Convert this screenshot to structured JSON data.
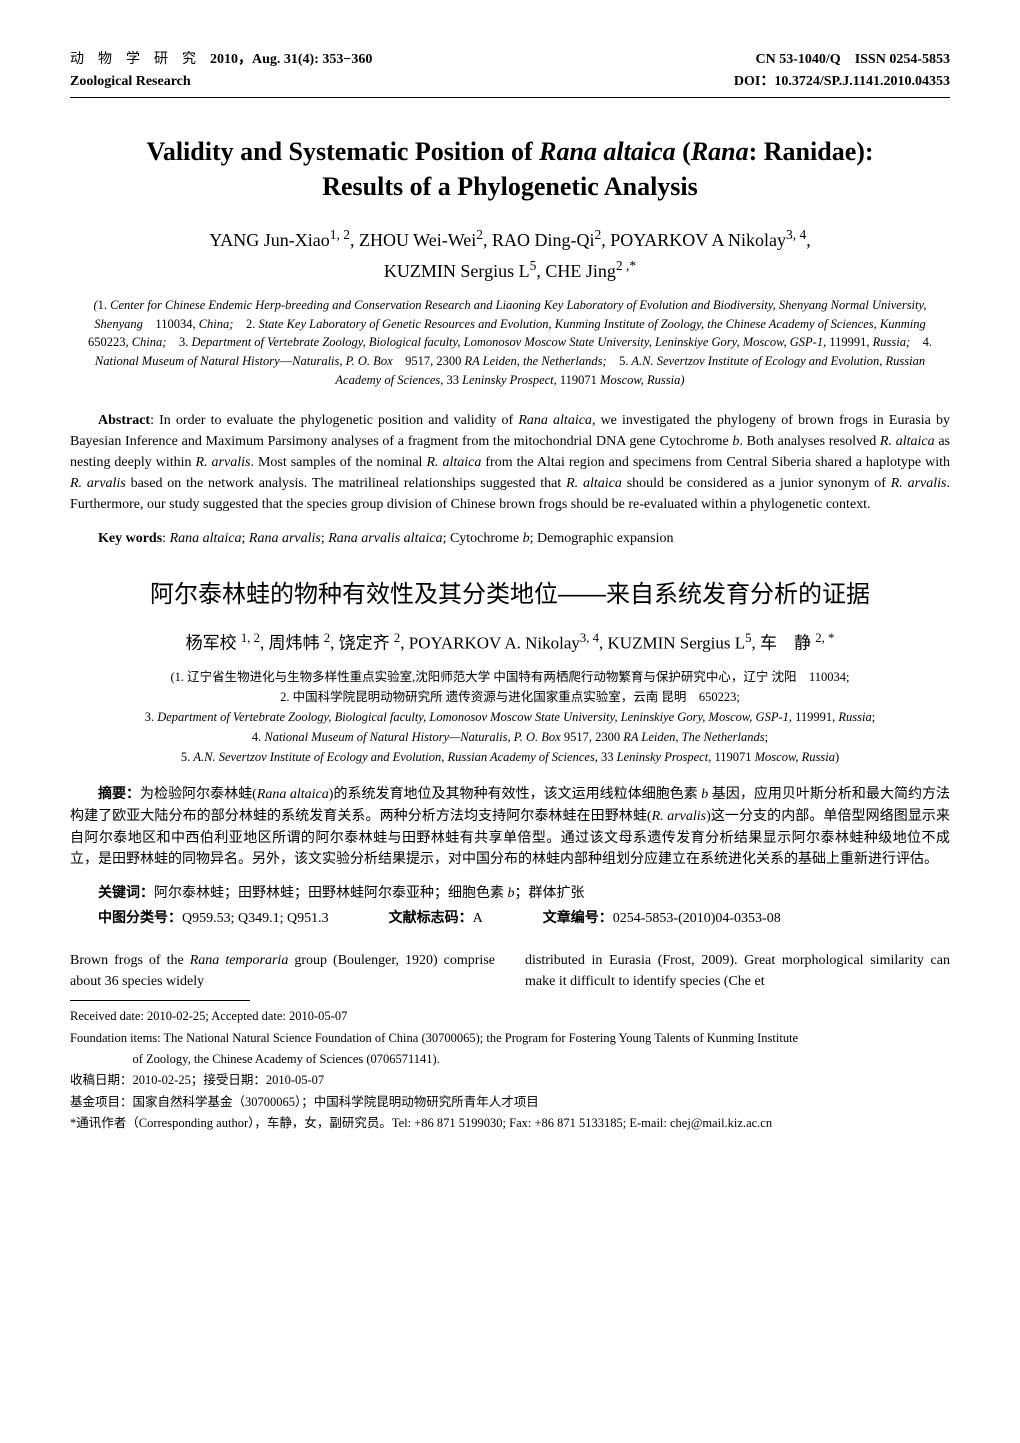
{
  "header": {
    "left_line1_cn": "动　物　学　研　究　",
    "left_line1_bold": "2010，Aug. 31(4): 353−360",
    "left_line2": "Zoological Research",
    "right_line1": "CN 53-1040/Q　ISSN 0254-5853",
    "right_line2": "DOI：10.3724/SP.J.1141.2010.04353"
  },
  "title_en": {
    "line1": "Validity and Systematic Position of <i>Rana altaica</i> (<i>Rana</i>: Ranidae):",
    "line2": "Results of a Phylogenetic Analysis"
  },
  "authors_en": {
    "line1": "YANG Jun-Xiao<sup>1, 2</sup>, ZHOU Wei-Wei<sup>2</sup>, RAO Ding-Qi<sup>2</sup>, POYARKOV A Nikolay<sup>3, 4</sup>,",
    "line2": "KUZMIN Sergius L<sup>5</sup>, CHE Jing<sup>2 ,*</sup>"
  },
  "affiliations_en": "(<span class='num'>1.</span> Center for Chinese Endemic Herp-breeding and Conservation Research and Liaoning Key Laboratory of Evolution and Biodiversity, Shenyang Normal University, Shenyang　<span class='num'>110034</span>, China;　<span class='num'>2.</span> State Key Laboratory of Genetic Resources and Evolution, Kunming Institute of Zoology, the Chinese Academy of Sciences, Kunming　<span class='num'>650223</span>, China;　<span class='num'>3.</span> Department of Vertebrate Zoology, Biological faculty, Lomonosov Moscow State University, Leninskiye Gory, Moscow, GSP-1, <span class='num'>119991</span>, Russia;　<span class='num'>4.</span> National Museum of Natural History<span class='num'>—</span>Naturalis, P. O. Box　<span class='num'>9517, 2300</span> RA Leiden, the Netherlands;　<span class='num'>5.</span> A.N. Severtzov Institute of Ecology and Evolution, Russian Academy of Sciences, <span class='num'>33</span> Leninsky Prospect, <span class='num'>119071</span> Moscow, Russia)",
  "abstract_en": {
    "label": "Abstract",
    "text": ": In order to evaluate the phylogenetic position and validity of <i>Rana altaica</i>, we investigated the phylogeny of brown frogs in Eurasia by Bayesian Inference and Maximum Parsimony analyses of a fragment from the mitochondrial DNA gene Cytochrome <i>b</i>. Both analyses resolved <i>R. altaica</i> as nesting deeply within <i>R. arvalis</i>. Most samples of the nominal <i>R. altaica</i> from the Altai region and specimens from Central Siberia shared a haplotype with <i>R. arvalis</i> based on the network analysis. The matrilineal relationships suggested that <i>R. altaica</i> should be considered as a junior synonym of <i>R. arvalis</i>. Furthermore, our study suggested that the species group division of Chinese brown frogs should be re-evaluated within a phylogenetic context."
  },
  "keywords_en": {
    "label": "Key words",
    "text": ": <i>Rana altaica</i>; <i>Rana arvalis</i>; <i>Rana arvalis altaica</i>; Cytochrome <i>b</i>; Demographic expansion"
  },
  "title_cn": "阿尔泰林蛙的物种有效性及其分类地位——来自系统发育分析的证据",
  "authors_cn": "杨军校 <sup>1, 2</sup>,  周炜帏 <sup>2</sup>,  饶定齐 <sup>2</sup>, POYARKOV A. Nikolay<sup>3, 4</sup>, KUZMIN Sergius L<sup>5</sup>,  车　静 <sup>2, *</sup>",
  "affiliations_cn": "(1. 辽宁省生物进化与生物多样性重点实验室,沈阳师范大学 中国特有两栖爬行动物繁育与保护研究中心，辽宁 沈阳　110034;<br>2. 中国科学院昆明动物研究所 遗传资源与进化国家重点实验室，云南 昆明　650223;<br>3. <i>Department of Vertebrate Zoology, Biological faculty, Lomonosov Moscow State University, Leninskiye Gory, Moscow, GSP-1</i>, 119991, <i>Russia</i>;<br>4. <i>National Museum of Natural History—Naturalis, P. O. Box</i> 9517, 2300 <i>RA Leiden, The Netherlands</i>;<br>5. <i>A.N. Severtzov Institute of Ecology and Evolution, Russian Academy of Sciences</i>, 33 <i>Leninsky Prospect</i>, 119071 <i>Moscow, Russia</i>)",
  "abstract_cn": {
    "label": "摘要：",
    "text": "为检验阿尔泰林蛙(<i>Rana altaica</i>)的系统发育地位及其物种有效性，该文运用线粒体细胞色素 <i>b</i> 基因，应用贝叶斯分析和最大简约方法构建了欧亚大陆分布的部分林蛙的系统发育关系。两种分析方法均支持阿尔泰林蛙在田野林蛙(<i>R. arvalis</i>)这一分支的内部。单倍型网络图显示来自阿尔泰地区和中西伯利亚地区所谓的阿尔泰林蛙与田野林蛙有共享单倍型。通过该文母系遗传发育分析结果显示阿尔泰林蛙种级地位不成立，是田野林蛙的同物异名。另外，该文实验分析结果提示，对中国分布的林蛙内部种组划分应建立在系统进化关系的基础上重新进行评估。"
  },
  "keywords_cn": {
    "label": "关键词：",
    "text": "阿尔泰林蛙；田野林蛙；田野林蛙阿尔泰亚种；细胞色素 <i>b</i>；群体扩张"
  },
  "classification_cn": {
    "clc_label": "中图分类号：",
    "clc_value": "Q959.53; Q349.1; Q951.3",
    "doc_label": "文献标志码：",
    "doc_value": "A",
    "art_label": "文章编号：",
    "art_value": "0254-5853-(2010)04-0353-08"
  },
  "body": {
    "col1": "<span class='indent'></span>Brown frogs of the <i>Rana temporaria</i> group (Boulenger, 1920) comprise about 36 species widely",
    "col2": "distributed in Eurasia (Frost, 2009). Great morphological similarity can make it difficult to identify species (Che et"
  },
  "footnotes": {
    "received_en": "Received date: 2010-02-25; Accepted date: 2010-05-07",
    "foundation_en": "Foundation items: The National Natural Science Foundation of China (30700065); the Program for Fostering Young Talents of Kunming Institute",
    "foundation_en_cont": "of Zoology, the Chinese Academy of Sciences (0706571141).",
    "received_cn": "收稿日期：2010-02-25；接受日期：2010-05-07",
    "foundation_cn": "基金项目：国家自然科学基金（30700065）；中国科学院昆明动物研究所青年人才项目",
    "corresponding": "*通讯作者（Corresponding author），车静，女，副研究员。Tel: +86 871 5199030; Fax: +86 871 5133185; E-mail: chej@mail.kiz.ac.cn"
  }
}
